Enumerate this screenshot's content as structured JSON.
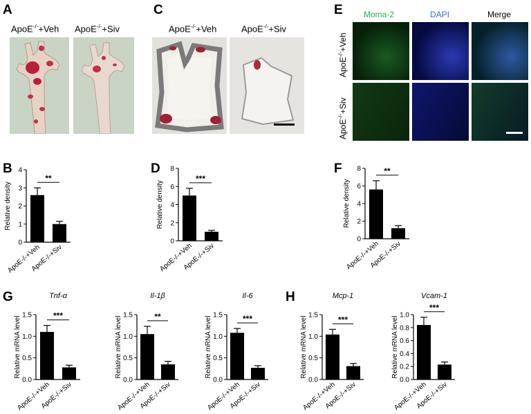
{
  "panel_labels": {
    "A": "A",
    "B": "B",
    "C": "C",
    "D": "D",
    "E": "E",
    "F": "F",
    "G": "G",
    "H": "H"
  },
  "group_labels": {
    "veh_prefix": "ApoE",
    "veh_suffix": "+Veh",
    "siv_prefix": "ApoE",
    "siv_suffix": "+Siv",
    "sup": "-/-"
  },
  "fluorescence": {
    "col_headers": [
      "Moma-2",
      "DAPI",
      "Merge"
    ],
    "header_colors": [
      "#22b14c",
      "#2f6fd6",
      "#000000"
    ]
  },
  "colors": {
    "bar": "#000000",
    "green_channel": "#0d3a12",
    "blue_channel": "#0a0f6e"
  },
  "chart_data": [
    {
      "id": "B",
      "type": "bar",
      "title": "",
      "ylabel": "Relative density",
      "categories": [
        "ApoE-/-+Veh",
        "ApoE-/-+Siv"
      ],
      "values": [
        2.6,
        1.0
      ],
      "errors": [
        0.4,
        0.15
      ],
      "ylim": [
        0,
        4
      ],
      "yticks": [
        "0",
        "1",
        "2",
        "3",
        "4"
      ],
      "significance": "**"
    },
    {
      "id": "D",
      "type": "bar",
      "title": "",
      "ylabel": "Relative density",
      "categories": [
        "ApoE-/-+Veh",
        "ApoE-/-+Siv"
      ],
      "values": [
        5.0,
        1.0
      ],
      "errors": [
        0.8,
        0.15
      ],
      "ylim": [
        0,
        8
      ],
      "yticks": [
        "0",
        "2",
        "4",
        "6",
        "8"
      ],
      "significance": "***"
    },
    {
      "id": "F",
      "type": "bar",
      "title": "",
      "ylabel": "Relative density",
      "categories": [
        "ApoE-/-+Veh",
        "ApoE-/-+Siv"
      ],
      "values": [
        5.6,
        1.2
      ],
      "errors": [
        1.0,
        0.3
      ],
      "ylim": [
        0,
        8
      ],
      "yticks": [
        "0",
        "2",
        "4",
        "6",
        "8"
      ],
      "significance": "**"
    },
    {
      "id": "G1",
      "type": "bar",
      "title": "Tnf-α",
      "ylabel": "Relative mRNA level",
      "categories": [
        "ApoE-/-+Veh",
        "ApoE-/-+Siv"
      ],
      "values": [
        1.1,
        0.28
      ],
      "errors": [
        0.15,
        0.05
      ],
      "ylim": [
        0,
        1.5
      ],
      "yticks": [
        "0.0",
        "0.5",
        "1.0",
        "1.5"
      ],
      "significance": "***"
    },
    {
      "id": "G2",
      "type": "bar",
      "title": "Il-1β",
      "ylabel": "Relative mRNA level",
      "categories": [
        "ApoE-/-+Veh",
        "ApoE-/-+Siv"
      ],
      "values": [
        1.05,
        0.35
      ],
      "errors": [
        0.18,
        0.07
      ],
      "ylim": [
        0,
        1.5
      ],
      "yticks": [
        "0.0",
        "0.5",
        "1.0",
        "1.5"
      ],
      "significance": "**"
    },
    {
      "id": "G3",
      "type": "bar",
      "title": "Il-6",
      "ylabel": "Relative mRNA level",
      "categories": [
        "ApoE-/-+Veh",
        "ApoE-/-+Siv"
      ],
      "values": [
        1.08,
        0.27
      ],
      "errors": [
        0.1,
        0.05
      ],
      "ylim": [
        0,
        1.5
      ],
      "yticks": [
        "0.0",
        "0.5",
        "1.0",
        "1.5"
      ],
      "significance": "***"
    },
    {
      "id": "H1",
      "type": "bar",
      "title": "Mcp-1",
      "ylabel": "Relative mRNA level",
      "categories": [
        "ApoE-/-+Veh",
        "ApoE-/-+Siv"
      ],
      "values": [
        1.04,
        0.31
      ],
      "errors": [
        0.12,
        0.06
      ],
      "ylim": [
        0,
        1.5
      ],
      "yticks": [
        "0.0",
        "0.5",
        "1.0",
        "1.5"
      ],
      "significance": "***"
    },
    {
      "id": "H2",
      "type": "bar",
      "title": "Vcam-1",
      "ylabel": "Relative mRNA level",
      "categories": [
        "ApoE-/-+Veh",
        "ApoE-/-+Siv"
      ],
      "values": [
        0.84,
        0.23
      ],
      "errors": [
        0.12,
        0.04
      ],
      "ylim": [
        0,
        1.0
      ],
      "yticks": [
        "0.0",
        "0.2",
        "0.4",
        "0.6",
        "0.8",
        "1.0"
      ],
      "significance": "***"
    }
  ]
}
